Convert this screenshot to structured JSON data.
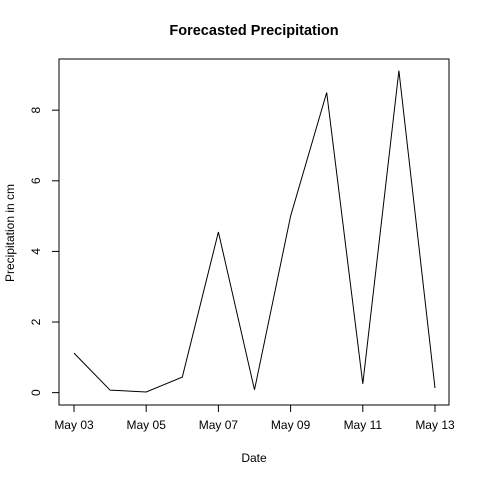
{
  "chart_data": {
    "type": "line",
    "title": "Forecasted Precipitation",
    "xlabel": "Date",
    "ylabel": "Precipitation in cm",
    "x": [
      "May 03",
      "May 04",
      "May 05",
      "May 06",
      "May 07",
      "May 08",
      "May 09",
      "May 10",
      "May 11",
      "May 12",
      "May 13"
    ],
    "values": [
      1.12,
      0.07,
      0.02,
      0.44,
      4.55,
      0.08,
      5.0,
      8.5,
      0.25,
      9.12,
      0.13
    ],
    "x_tick_labels": [
      "May 03",
      "May 05",
      "May 07",
      "May 09",
      "May 11",
      "May 13"
    ],
    "y_ticks": [
      0,
      2,
      4,
      6,
      8
    ],
    "ylim": [
      -0.35,
      9.45
    ],
    "grid": false,
    "line_color": "#000000"
  }
}
